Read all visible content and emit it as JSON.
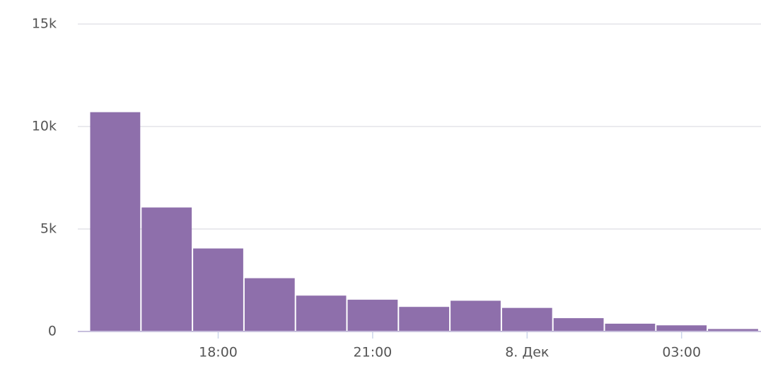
{
  "chart_data": {
    "type": "bar",
    "categories": [
      null,
      null,
      "18:00",
      null,
      null,
      "21:00",
      null,
      null,
      "8. Дек",
      null,
      null,
      "03:00",
      null
    ],
    "values": [
      10700,
      6050,
      4050,
      2600,
      1750,
      1550,
      1200,
      1500,
      1150,
      650,
      380,
      300,
      120
    ],
    "color": "#8e6fab",
    "ylim": [
      0,
      15000
    ],
    "yticks": [
      0,
      {
        "value": 5000,
        "label": "5k"
      },
      {
        "value": 10000,
        "label": "10k"
      },
      {
        "value": 15000,
        "label": "15k"
      }
    ],
    "grid": true
  }
}
